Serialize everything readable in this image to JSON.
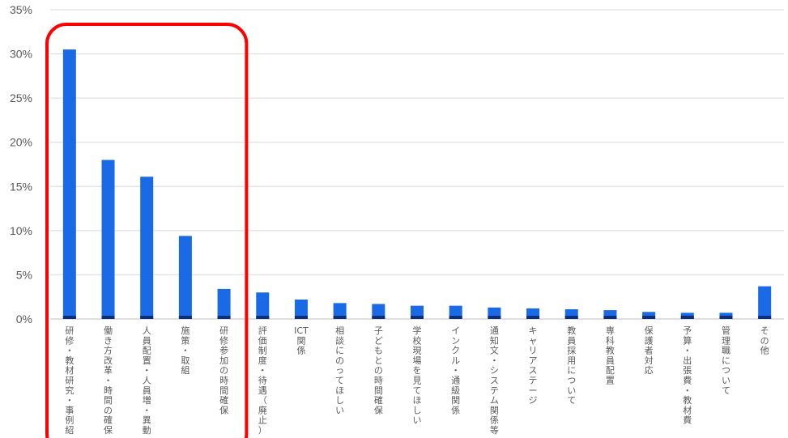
{
  "chart_data": {
    "type": "bar",
    "categories": [
      "研修・教材研究・事例紹",
      "働き方改革・時間の確保",
      "人員配置・人員増・異動",
      "施策・取組",
      "研修参加の時間確保",
      "評価制度・待遇（廃止）",
      "ICT関係",
      "相談にのってほしい",
      "子どもとの時間確保",
      "学校現場を見てほしい",
      "インクル・通級関係",
      "通知文・システム関係等",
      "キャリアステージ",
      "教員採用について",
      "専科教員配置",
      "保護者対応",
      "予算・出張費・教材費",
      "管理職について",
      "その他"
    ],
    "values": [
      30.5,
      18.0,
      16.1,
      9.4,
      3.4,
      3.0,
      2.2,
      1.8,
      1.7,
      1.5,
      1.5,
      1.3,
      1.2,
      1.1,
      1.0,
      0.8,
      0.7,
      0.7,
      3.7
    ],
    "ylim": [
      0,
      35
    ],
    "yticks": [
      "0%",
      "5%",
      "10%",
      "15%",
      "20%",
      "25%",
      "30%",
      "35%"
    ],
    "grid": true,
    "bar_color": "#1a6ae6",
    "bar_base_color": "#0d2f7a",
    "highlight_color": "#ff0000",
    "highlight_range": [
      0,
      4
    ]
  }
}
